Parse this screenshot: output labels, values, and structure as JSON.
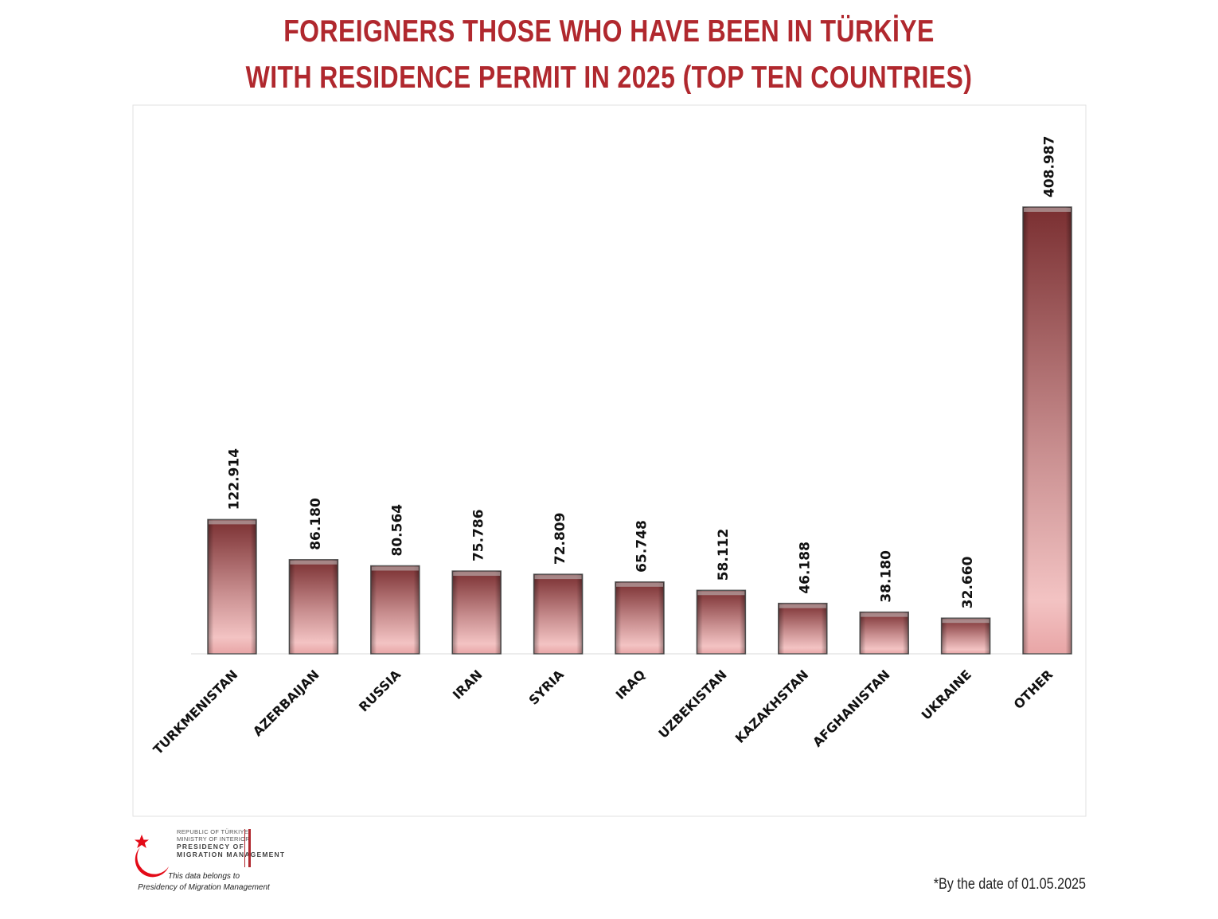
{
  "title_line1": "FOREIGNERS THOSE WHO HAVE BEEN IN TÜRKİYE",
  "title_line2": "WITH RESIDENCE PERMIT IN 2025 (TOP TEN COUNTRIES)",
  "logo": {
    "line1": "REPUBLIC OF TÜRKIYE",
    "line2": "MINISTRY OF INTERIOR",
    "line3": "PRESIDENCY OF",
    "line4": "MIGRATION MANAGEMENT",
    "colors": {
      "red": "#e30a17"
    }
  },
  "belongs_line1": "This data belongs to",
  "belongs_line2": "Presidency of Migration Management",
  "date_note": "*By the date of 01.05.2025",
  "chart_data": {
    "type": "bar",
    "title": "FOREIGNERS THOSE WHO HAVE BEEN IN TÜRKİYE WITH RESIDENCE PERMIT IN 2025 (TOP TEN COUNTRIES)",
    "categories": [
      "TURKMENISTAN",
      "AZERBAIJAN",
      "RUSSIA",
      "IRAN",
      "SYRIA",
      "IRAQ",
      "UZBEKISTAN",
      "KAZAKHSTAN",
      "AFGHANISTAN",
      "UKRAINE",
      "OTHER"
    ],
    "values": [
      122914,
      86180,
      80564,
      75786,
      72809,
      65748,
      58112,
      46188,
      38180,
      32660,
      408987
    ],
    "value_labels": [
      "122.914",
      "86.180",
      "80.564",
      "75.786",
      "72.809",
      "65.748",
      "58.112",
      "46.188",
      "38.180",
      "32.660",
      "408.987"
    ],
    "ylim": [
      0,
      410000
    ],
    "grid": false,
    "colors": {
      "bar_top": "#7a2f31",
      "bar_bottom": "#f2bcbc",
      "title": "#b0282e"
    }
  }
}
